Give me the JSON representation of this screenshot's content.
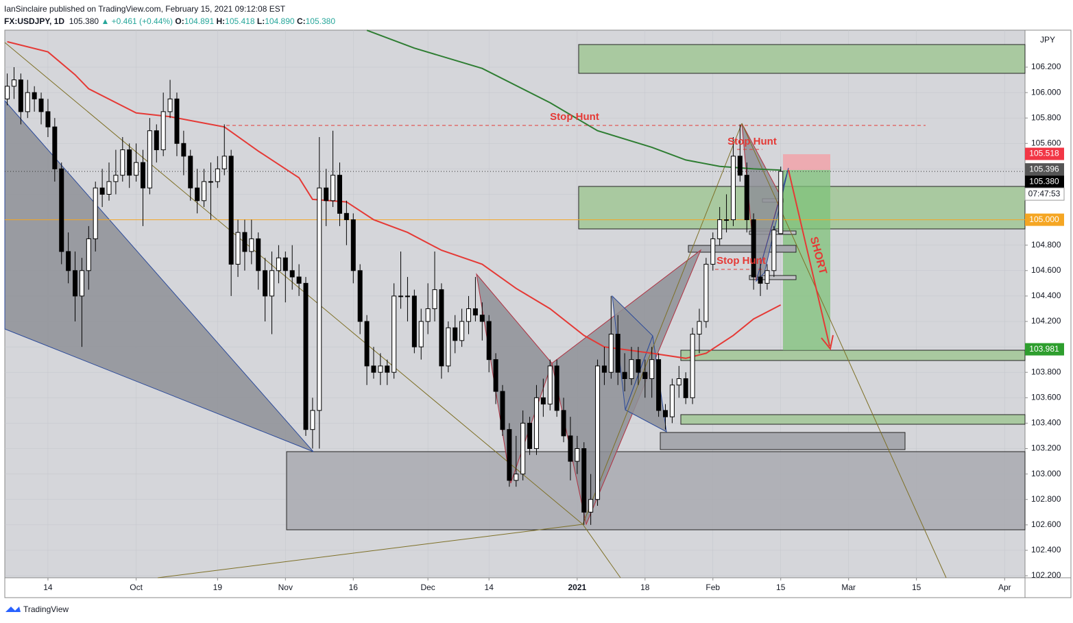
{
  "header": {
    "published": "IanSinclaire published on TradingView.com, February 15, 2021 09:12:08 EST",
    "symbol": "FX:USDJPY, 1D",
    "last": "105.380",
    "change": "▲ +0.461 (+0.44%)",
    "ohlc": [
      [
        "O:",
        "104.891"
      ],
      [
        "H:",
        "105.418"
      ],
      [
        "L:",
        "104.890"
      ],
      [
        "C:",
        "105.380"
      ]
    ]
  },
  "footer": {
    "brand": "TradingView"
  },
  "chart_data": {
    "type": "candlestick",
    "currency": "JPY",
    "up_color": "#ffffff",
    "down_color": "#000000",
    "xlim": [
      -0.36,
      150
    ],
    "xticks": [
      {
        "value": 6,
        "label": "14"
      },
      {
        "value": 19,
        "label": "Oct"
      },
      {
        "value": 31,
        "label": "19"
      },
      {
        "value": 41,
        "label": "Nov"
      },
      {
        "value": 51,
        "label": "16"
      },
      {
        "value": 62,
        "label": "Dec"
      },
      {
        "value": 71,
        "label": "14"
      },
      {
        "value": 84,
        "label": "2021",
        "bold": true
      },
      {
        "value": 94,
        "label": "18"
      },
      {
        "value": 104,
        "label": "Feb"
      },
      {
        "value": 114,
        "label": "15"
      },
      {
        "value": 124,
        "label": "Mar"
      },
      {
        "value": 134,
        "label": "15"
      },
      {
        "value": 147,
        "label": "Apr"
      }
    ],
    "ylim": [
      102.184,
      106.491
    ],
    "yticks": [
      {
        "value": 102.2,
        "label": "102.200"
      },
      {
        "value": 102.4,
        "label": "102.400"
      },
      {
        "value": 102.6,
        "label": "102.600"
      },
      {
        "value": 102.8,
        "label": "102.800"
      },
      {
        "value": 103.0,
        "label": "103.000"
      },
      {
        "value": 103.2,
        "label": "103.200"
      },
      {
        "value": 103.4,
        "label": "103.400"
      },
      {
        "value": 103.6,
        "label": "103.600"
      },
      {
        "value": 103.8,
        "label": "103.800"
      },
      {
        "value": 104.0,
        "label": "104.000"
      },
      {
        "value": 104.2,
        "label": "104.200"
      },
      {
        "value": 104.4,
        "label": "104.400"
      },
      {
        "value": 104.6,
        "label": "104.600"
      },
      {
        "value": 104.8,
        "label": "104.800"
      },
      {
        "value": 105.0,
        "label": "105.000"
      },
      {
        "value": 105.2,
        "label": "105.200"
      },
      {
        "value": 105.4,
        "label": "105.400"
      },
      {
        "value": 105.6,
        "label": "105.600"
      },
      {
        "value": 105.8,
        "label": "105.800"
      },
      {
        "value": 106.0,
        "label": "106.000"
      },
      {
        "value": 106.2,
        "label": "106.200"
      }
    ],
    "ohlc": [
      [
        105.95,
        106.15,
        105.9,
        106.05
      ],
      [
        106.05,
        106.2,
        105.95,
        106.1
      ],
      [
        106.1,
        106.15,
        105.75,
        105.85
      ],
      [
        105.85,
        106.1,
        105.8,
        106.0
      ],
      [
        106.0,
        106.05,
        105.85,
        105.95
      ],
      [
        105.95,
        106.0,
        105.75,
        105.85
      ],
      [
        105.85,
        105.95,
        105.65,
        105.73
      ],
      [
        105.73,
        105.8,
        105.3,
        105.4
      ],
      [
        105.4,
        105.45,
        104.65,
        104.75
      ],
      [
        104.75,
        104.9,
        104.5,
        104.6
      ],
      [
        104.6,
        104.75,
        104.2,
        104.4
      ],
      [
        104.4,
        104.7,
        104.0,
        104.6
      ],
      [
        104.6,
        104.95,
        104.45,
        104.85
      ],
      [
        104.85,
        105.3,
        104.75,
        105.25
      ],
      [
        105.25,
        105.4,
        105.1,
        105.2
      ],
      [
        105.2,
        105.45,
        105.15,
        105.3
      ],
      [
        105.3,
        105.55,
        105.2,
        105.35
      ],
      [
        105.35,
        105.65,
        105.3,
        105.55
      ],
      [
        105.55,
        105.6,
        105.25,
        105.35
      ],
      [
        105.35,
        105.6,
        105.3,
        105.45
      ],
      [
        105.45,
        105.55,
        104.95,
        105.25
      ],
      [
        105.25,
        105.8,
        105.2,
        105.7
      ],
      [
        105.7,
        105.75,
        105.45,
        105.55
      ],
      [
        105.55,
        106.0,
        105.5,
        105.85
      ],
      [
        105.85,
        106.1,
        105.8,
        105.95
      ],
      [
        105.95,
        106.0,
        105.5,
        105.6
      ],
      [
        105.6,
        105.7,
        105.35,
        105.5
      ],
      [
        105.5,
        105.55,
        105.15,
        105.25
      ],
      [
        105.25,
        105.4,
        105.05,
        105.15
      ],
      [
        105.15,
        105.4,
        105.1,
        105.3
      ],
      [
        105.3,
        105.45,
        105.0,
        105.3
      ],
      [
        105.3,
        105.5,
        105.25,
        105.4
      ],
      [
        105.4,
        105.75,
        105.35,
        105.5
      ],
      [
        105.5,
        105.55,
        104.4,
        104.65
      ],
      [
        104.65,
        105.0,
        104.55,
        104.9
      ],
      [
        104.9,
        105.0,
        104.6,
        104.75
      ],
      [
        104.75,
        105.0,
        104.65,
        104.85
      ],
      [
        104.85,
        104.9,
        104.45,
        104.6
      ],
      [
        104.6,
        104.7,
        104.2,
        104.4
      ],
      [
        104.4,
        104.75,
        104.1,
        104.6
      ],
      [
        104.6,
        104.8,
        104.5,
        104.7
      ],
      [
        104.7,
        104.75,
        104.35,
        104.6
      ],
      [
        104.6,
        104.8,
        104.45,
        104.55
      ],
      [
        104.55,
        104.65,
        104.4,
        104.5
      ],
      [
        104.5,
        104.55,
        103.3,
        103.35
      ],
      [
        103.35,
        103.6,
        103.2,
        103.5
      ],
      [
        103.5,
        105.65,
        103.2,
        105.25
      ],
      [
        105.25,
        105.4,
        104.95,
        105.15
      ],
      [
        105.15,
        105.7,
        105.1,
        105.35
      ],
      [
        105.35,
        105.45,
        104.95,
        105.05
      ],
      [
        105.05,
        105.15,
        104.8,
        105.0
      ],
      [
        105.0,
        105.05,
        104.5,
        104.6
      ],
      [
        104.6,
        104.65,
        104.1,
        104.2
      ],
      [
        104.2,
        104.25,
        103.7,
        103.85
      ],
      [
        103.85,
        104.0,
        103.75,
        103.8
      ],
      [
        103.8,
        103.95,
        103.7,
        103.85
      ],
      [
        103.85,
        103.9,
        103.7,
        103.8
      ],
      [
        103.8,
        104.5,
        103.75,
        104.4
      ],
      [
        104.4,
        104.75,
        104.3,
        104.4
      ],
      [
        104.4,
        104.55,
        104.2,
        104.4
      ],
      [
        104.4,
        104.45,
        103.95,
        104.0
      ],
      [
        104.0,
        104.3,
        103.9,
        104.2
      ],
      [
        104.2,
        104.5,
        104.1,
        104.3
      ],
      [
        104.3,
        104.75,
        104.2,
        104.45
      ],
      [
        104.45,
        104.5,
        103.75,
        103.85
      ],
      [
        103.85,
        104.2,
        103.8,
        104.15
      ],
      [
        104.15,
        104.25,
        103.95,
        104.05
      ],
      [
        104.05,
        104.3,
        104.0,
        104.2
      ],
      [
        104.2,
        104.4,
        104.1,
        104.3
      ],
      [
        104.3,
        104.55,
        104.2,
        104.25
      ],
      [
        104.25,
        104.35,
        104.05,
        104.2
      ],
      [
        104.2,
        104.25,
        103.8,
        103.9
      ],
      [
        103.9,
        103.95,
        103.55,
        103.65
      ],
      [
        103.65,
        103.7,
        103.3,
        103.35
      ],
      [
        103.35,
        103.4,
        102.9,
        102.95
      ],
      [
        102.95,
        103.3,
        102.9,
        103.0
      ],
      [
        103.0,
        103.5,
        102.95,
        103.4
      ],
      [
        103.4,
        103.45,
        103.15,
        103.2
      ],
      [
        103.2,
        103.7,
        103.15,
        103.6
      ],
      [
        103.6,
        103.75,
        103.45,
        103.55
      ],
      [
        103.55,
        103.9,
        103.5,
        103.85
      ],
      [
        103.85,
        103.9,
        103.45,
        103.5
      ],
      [
        103.5,
        103.6,
        103.25,
        103.3
      ],
      [
        103.3,
        103.45,
        102.95,
        103.1
      ],
      [
        103.1,
        103.3,
        103.0,
        103.2
      ],
      [
        103.2,
        103.25,
        102.6,
        102.7
      ],
      [
        102.7,
        103.0,
        102.6,
        102.8
      ],
      [
        102.8,
        103.9,
        102.75,
        103.85
      ],
      [
        103.85,
        104.0,
        103.7,
        103.8
      ],
      [
        103.8,
        104.4,
        103.75,
        104.1
      ],
      [
        104.1,
        104.25,
        103.7,
        103.8
      ],
      [
        103.8,
        103.95,
        103.65,
        103.75
      ],
      [
        103.75,
        104.0,
        103.7,
        103.9
      ],
      [
        103.9,
        104.0,
        103.7,
        103.8
      ],
      [
        103.8,
        103.9,
        103.6,
        103.75
      ],
      [
        103.75,
        104.0,
        103.6,
        103.9
      ],
      [
        103.9,
        103.95,
        103.45,
        103.5
      ],
      [
        103.5,
        103.55,
        103.35,
        103.45
      ],
      [
        103.45,
        103.75,
        103.4,
        103.7
      ],
      [
        103.7,
        103.85,
        103.6,
        103.75
      ],
      [
        103.75,
        103.8,
        103.55,
        103.6
      ],
      [
        103.6,
        104.15,
        103.55,
        104.1
      ],
      [
        104.1,
        104.3,
        103.95,
        104.2
      ],
      [
        104.2,
        104.7,
        104.15,
        104.65
      ],
      [
        104.65,
        104.9,
        104.6,
        104.85
      ],
      [
        104.85,
        105.1,
        104.8,
        105.0
      ],
      [
        105.0,
        105.2,
        104.9,
        105.0
      ],
      [
        105.0,
        105.65,
        104.95,
        105.5
      ],
      [
        105.5,
        105.75,
        105.3,
        105.35
      ],
      [
        105.35,
        105.45,
        104.9,
        105.0
      ],
      [
        105.0,
        105.05,
        104.45,
        104.55
      ],
      [
        104.55,
        104.7,
        104.4,
        104.5
      ],
      [
        104.5,
        104.65,
        104.45,
        104.6
      ],
      [
        104.6,
        104.95,
        104.55,
        104.919
      ],
      [
        104.891,
        105.418,
        104.89,
        105.38
      ]
    ],
    "lines": [
      {
        "color": "#e53935",
        "x": [
          0,
          6,
          10,
          12,
          19,
          24,
          29,
          32,
          37,
          43,
          45,
          50,
          54,
          59,
          64,
          70,
          75,
          80,
          85,
          88,
          95,
          100,
          103,
          107,
          110,
          114
        ],
        "values": [
          106.4,
          106.32,
          106.14,
          106.03,
          105.84,
          105.81,
          105.76,
          105.73,
          105.54,
          105.33,
          105.16,
          105.14,
          105.0,
          104.9,
          104.76,
          104.65,
          104.46,
          104.3,
          104.09,
          104.0,
          103.95,
          103.91,
          103.95,
          104.09,
          104.22,
          104.33
        ]
      },
      {
        "color": "#2e7d32",
        "x": [
          53,
          60,
          70,
          80,
          87,
          95,
          100,
          105,
          110,
          114
        ],
        "values": [
          106.49,
          106.35,
          106.19,
          105.92,
          105.7,
          105.57,
          105.47,
          105.42,
          105.4,
          105.39
        ]
      }
    ],
    "price_labels": [
      {
        "value": 105.518,
        "label": "105.518",
        "color": "#f23645"
      },
      {
        "value": 105.396,
        "label": "105.396",
        "color": "#555555"
      },
      {
        "value": 105.38,
        "label": "105.380",
        "color": "#000000"
      },
      {
        "value": 105.0,
        "label": "105.000",
        "color": "#f5a623",
        "line": true
      },
      {
        "value": 103.981,
        "label": "103.981",
        "color": "#2e9e2e"
      }
    ],
    "countdown": "07:47:53",
    "annotations": [
      "Stop Hunt",
      "Stop Hunt",
      "Stop Hunt",
      "SHORT"
    ]
  }
}
